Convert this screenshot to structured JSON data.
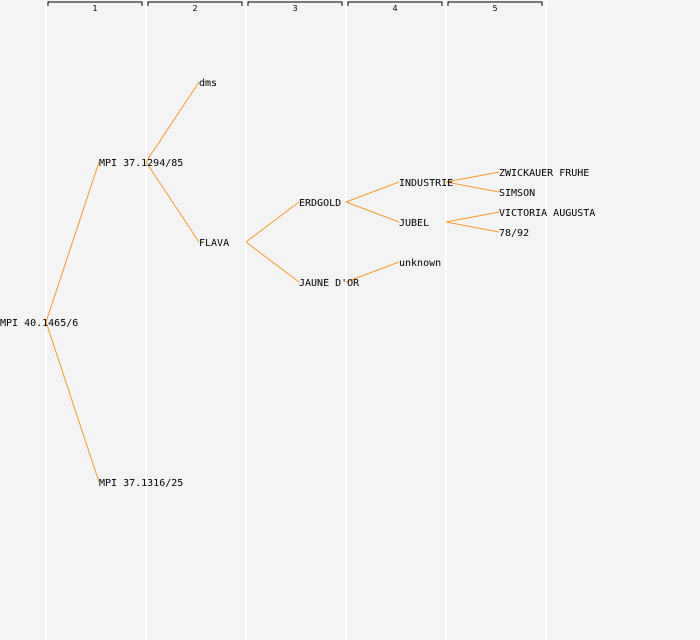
{
  "generations": [
    "1",
    "2",
    "3",
    "4",
    "5"
  ],
  "colors": {
    "background": "#f4f4f4",
    "column_divider": "#ffffff",
    "edge": "#f59a2e",
    "header_bracket": "#000000",
    "text": "#000000"
  },
  "tree": {
    "label": "MPI 40.1465/6",
    "children": [
      {
        "label": "MPI 37.1294/85",
        "children": [
          {
            "label": "dms",
            "children": []
          },
          {
            "label": "FLAVA",
            "children": [
              {
                "label": "ERDGOLD",
                "children": [
                  {
                    "label": "INDUSTRIE",
                    "children": [
                      {
                        "label": "ZWICKAUER FRUHE",
                        "children": []
                      },
                      {
                        "label": "SIMSON",
                        "children": []
                      }
                    ]
                  },
                  {
                    "label": "JUBEL",
                    "children": [
                      {
                        "label": "VICTORIA AUGUSTA",
                        "children": []
                      },
                      {
                        "label": "78/92",
                        "children": []
                      }
                    ]
                  }
                ]
              },
              {
                "label": "JAUNE D'OR",
                "children": [
                  {
                    "label": "unknown",
                    "children": []
                  }
                ]
              }
            ]
          }
        ]
      },
      {
        "label": "MPI 37.1316/25",
        "children": []
      }
    ]
  }
}
